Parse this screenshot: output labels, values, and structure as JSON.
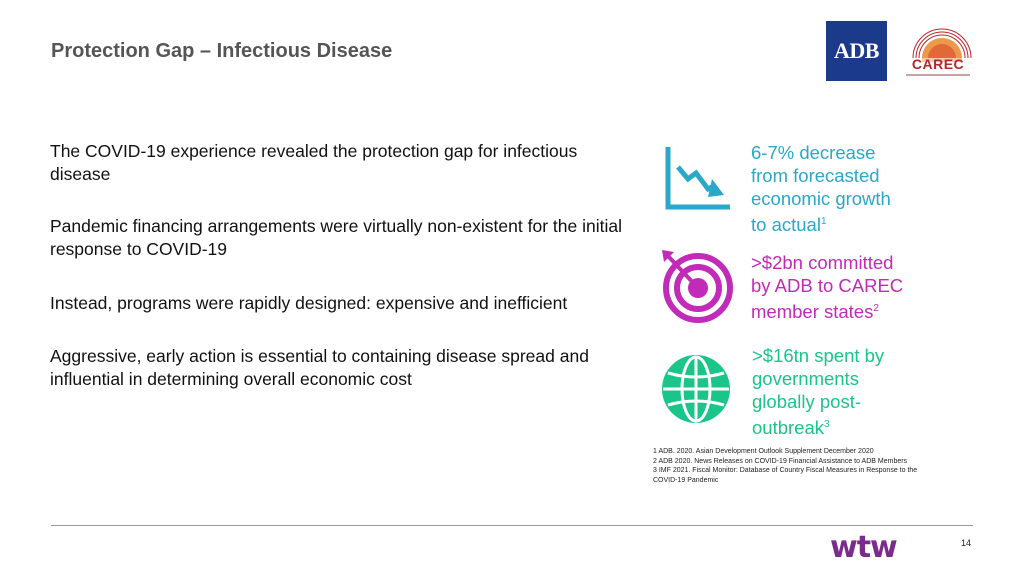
{
  "title": "Protection Gap – Infectious Disease",
  "logos": {
    "adb": "ADB",
    "carec": "CAREC",
    "wtw": "wtw"
  },
  "paragraphs": [
    "The COVID-19 experience revealed the protection gap for infectious disease",
    "Pandemic financing arrangements were virtually non-existent for the initial response to COVID-19",
    "Instead, programs were rapidly designed: expensive and inefficient",
    "Aggressive, early action is essential to containing disease spread and influential in determining overall economic cost"
  ],
  "stats": [
    {
      "lines": [
        "6-7% decrease",
        "from forecasted",
        "economic growth",
        "to actual"
      ],
      "ref": "1",
      "icon": "declining-chart-icon",
      "color": "#2aa7c9"
    },
    {
      "lines": [
        ">$2bn committed",
        "by ADB to CAREC",
        "member states"
      ],
      "ref": "2",
      "icon": "target-icon",
      "color": "#c12bb7"
    },
    {
      "lines": [
        ">$16tn spent by",
        "governments",
        "globally post-",
        "outbreak"
      ],
      "ref": "3",
      "icon": "globe-icon",
      "color": "#19c589"
    }
  ],
  "footnotes": [
    "1 ADB. 2020. Asian Development Outlook Supplement December 2020",
    "2 ADB 2020. News Releases on COVID-19 Financial Assistance to ADB Members",
    "3 IMF 2021. Fiscal Monitor: Database of Country Fiscal Measures in Response to the COVID-19 Pandemic"
  ],
  "page_number": "14"
}
